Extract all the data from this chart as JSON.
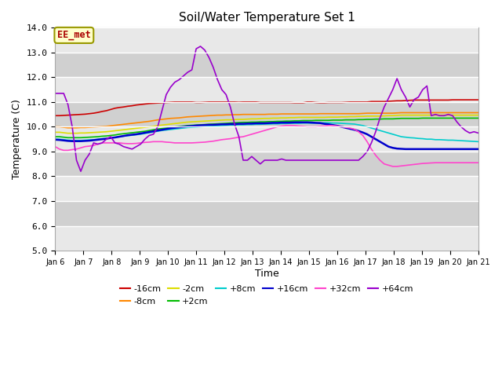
{
  "title": "Soil/Water Temperature Set 1",
  "xlabel": "Time",
  "ylabel": "Temperature (C)",
  "ylim": [
    5.0,
    14.0
  ],
  "yticks": [
    5.0,
    6.0,
    7.0,
    8.0,
    9.0,
    10.0,
    11.0,
    12.0,
    13.0,
    14.0
  ],
  "xtick_labels": [
    "Jan 6",
    "Jan 7",
    "Jan 8",
    "Jan 9",
    "Jan 10",
    "Jan 11",
    "Jan 12",
    "Jan 13",
    "Jan 14",
    "Jan 15",
    "Jan 16",
    "Jan 17",
    "Jan 18",
    "Jan 19",
    "Jan 20",
    "Jan 21"
  ],
  "series": [
    {
      "label": "-16cm",
      "color": "#cc0000",
      "linewidth": 1.2,
      "y": [
        10.45,
        10.45,
        10.46,
        10.47,
        10.48,
        10.49,
        10.5,
        10.51,
        10.53,
        10.55,
        10.58,
        10.62,
        10.65,
        10.7,
        10.75,
        10.78,
        10.8,
        10.83,
        10.85,
        10.88,
        10.9,
        10.92,
        10.94,
        10.95,
        10.96,
        10.97,
        10.98,
        10.99,
        11.0,
        11.0,
        11.0,
        11.0,
        11.0,
        10.98,
        10.98,
        10.99,
        11.0,
        11.0,
        11.0,
        11.0,
        11.0,
        11.0,
        11.0,
        10.99,
        11.0,
        11.0,
        11.0,
        11.0,
        10.98,
        10.98,
        10.98,
        10.98,
        10.98,
        10.98,
        10.98,
        10.98,
        10.97,
        10.97,
        10.97,
        11.0,
        11.0,
        10.98,
        10.97,
        10.97,
        10.98,
        10.98,
        10.98,
        10.98,
        10.99,
        11.0,
        11.0,
        11.0,
        11.0,
        11.0,
        11.02,
        11.02,
        11.02,
        11.02,
        11.03,
        11.04,
        11.05,
        11.05,
        11.06,
        11.07,
        11.08,
        11.08,
        11.08,
        11.08,
        11.08,
        11.08,
        11.08,
        11.08,
        11.08,
        11.09,
        11.09,
        11.09,
        11.09,
        11.09,
        11.09,
        11.09
      ]
    },
    {
      "label": "-8cm",
      "color": "#ff8800",
      "linewidth": 1.2,
      "y": [
        10.0,
        10.0,
        9.98,
        9.96,
        9.96,
        9.96,
        9.97,
        9.97,
        9.98,
        9.99,
        10.0,
        10.01,
        10.02,
        10.04,
        10.06,
        10.08,
        10.1,
        10.12,
        10.14,
        10.16,
        10.18,
        10.2,
        10.22,
        10.25,
        10.28,
        10.3,
        10.32,
        10.34,
        10.35,
        10.36,
        10.38,
        10.4,
        10.41,
        10.42,
        10.43,
        10.44,
        10.45,
        10.46,
        10.47,
        10.47,
        10.48,
        10.48,
        10.49,
        10.49,
        10.5,
        10.5,
        10.5,
        10.5,
        10.5,
        10.5,
        10.51,
        10.51,
        10.51,
        10.52,
        10.52,
        10.52,
        10.52,
        10.52,
        10.52,
        10.52,
        10.52,
        10.52,
        10.53,
        10.53,
        10.53,
        10.53,
        10.53,
        10.53,
        10.53,
        10.53,
        10.53,
        10.53,
        10.54,
        10.55,
        10.55,
        10.55,
        10.55,
        10.55,
        10.55,
        10.55,
        10.56,
        10.57,
        10.57,
        10.57,
        10.57,
        10.57,
        10.57,
        10.57,
        10.57,
        10.57,
        10.57,
        10.57,
        10.57,
        10.57,
        10.57,
        10.57,
        10.57,
        10.57,
        10.57,
        10.57
      ]
    },
    {
      "label": "-2cm",
      "color": "#dddd00",
      "linewidth": 1.2,
      "y": [
        9.78,
        9.78,
        9.76,
        9.74,
        9.74,
        9.74,
        9.75,
        9.75,
        9.76,
        9.77,
        9.78,
        9.79,
        9.8,
        9.82,
        9.84,
        9.86,
        9.88,
        9.9,
        9.92,
        9.94,
        9.96,
        9.98,
        10.0,
        10.02,
        10.05,
        10.07,
        10.09,
        10.11,
        10.13,
        10.15,
        10.17,
        10.19,
        10.2,
        10.21,
        10.22,
        10.23,
        10.24,
        10.25,
        10.26,
        10.27,
        10.28,
        10.28,
        10.29,
        10.3,
        10.3,
        10.31,
        10.32,
        10.32,
        10.33,
        10.34,
        10.34,
        10.35,
        10.35,
        10.36,
        10.36,
        10.37,
        10.37,
        10.38,
        10.38,
        10.38,
        10.38,
        10.38,
        10.38,
        10.38,
        10.39,
        10.39,
        10.39,
        10.4,
        10.4,
        10.41,
        10.41,
        10.42,
        10.42,
        10.43,
        10.43,
        10.43,
        10.43,
        10.44,
        10.45,
        10.45,
        10.46,
        10.47,
        10.47,
        10.47,
        10.47,
        10.47,
        10.47,
        10.47,
        10.47,
        10.47,
        10.47,
        10.47,
        10.47,
        10.47,
        10.47,
        10.47,
        10.47,
        10.47,
        10.47,
        10.47
      ]
    },
    {
      "label": "+2cm",
      "color": "#00bb00",
      "linewidth": 1.2,
      "y": [
        9.6,
        9.6,
        9.58,
        9.56,
        9.56,
        9.56,
        9.56,
        9.57,
        9.58,
        9.59,
        9.6,
        9.62,
        9.63,
        9.65,
        9.67,
        9.7,
        9.72,
        9.74,
        9.76,
        9.78,
        9.8,
        9.82,
        9.85,
        9.88,
        9.91,
        9.93,
        9.95,
        9.97,
        9.99,
        10.01,
        10.03,
        10.05,
        10.06,
        10.07,
        10.08,
        10.09,
        10.1,
        10.11,
        10.12,
        10.13,
        10.14,
        10.15,
        10.16,
        10.17,
        10.18,
        10.18,
        10.19,
        10.19,
        10.2,
        10.2,
        10.21,
        10.21,
        10.22,
        10.22,
        10.23,
        10.23,
        10.24,
        10.24,
        10.25,
        10.25,
        10.25,
        10.26,
        10.26,
        10.26,
        10.26,
        10.27,
        10.27,
        10.27,
        10.28,
        10.28,
        10.28,
        10.29,
        10.29,
        10.3,
        10.3,
        10.31,
        10.31,
        10.32,
        10.32,
        10.32,
        10.33,
        10.34,
        10.34,
        10.34,
        10.34,
        10.34,
        10.35,
        10.35,
        10.35,
        10.35,
        10.35,
        10.35,
        10.35,
        10.35,
        10.35,
        10.35,
        10.35,
        10.35,
        10.35,
        10.35
      ]
    },
    {
      "label": "+8cm",
      "color": "#00cccc",
      "linewidth": 1.2,
      "y": [
        9.5,
        9.5,
        9.48,
        9.46,
        9.45,
        9.45,
        9.45,
        9.46,
        9.47,
        9.48,
        9.5,
        9.52,
        9.53,
        9.55,
        9.57,
        9.6,
        9.62,
        9.64,
        9.66,
        9.68,
        9.7,
        9.73,
        9.76,
        9.79,
        9.82,
        9.85,
        9.87,
        9.89,
        9.91,
        9.93,
        9.95,
        9.97,
        9.98,
        9.99,
        10.0,
        10.01,
        10.02,
        10.03,
        10.04,
        10.05,
        10.06,
        10.07,
        10.07,
        10.08,
        10.08,
        10.09,
        10.09,
        10.1,
        10.1,
        10.11,
        10.11,
        10.12,
        10.12,
        10.13,
        10.13,
        10.14,
        10.14,
        10.14,
        10.15,
        10.15,
        10.15,
        10.15,
        10.16,
        10.16,
        10.16,
        10.15,
        10.15,
        10.14,
        10.13,
        10.12,
        10.11,
        10.08,
        10.05,
        10.0,
        9.95,
        9.9,
        9.85,
        9.8,
        9.75,
        9.7,
        9.65,
        9.6,
        9.58,
        9.56,
        9.55,
        9.53,
        9.52,
        9.5,
        9.5,
        9.48,
        9.48,
        9.47,
        9.46,
        9.46,
        9.45,
        9.44,
        9.43,
        9.42,
        9.41,
        9.4
      ]
    },
    {
      "label": "+16cm",
      "color": "#0000cc",
      "linewidth": 1.8,
      "y": [
        9.48,
        9.47,
        9.45,
        9.43,
        9.42,
        9.42,
        9.42,
        9.43,
        9.44,
        9.46,
        9.48,
        9.5,
        9.52,
        9.55,
        9.57,
        9.6,
        9.63,
        9.66,
        9.68,
        9.7,
        9.73,
        9.76,
        9.79,
        9.82,
        9.85,
        9.88,
        9.91,
        9.94,
        9.96,
        9.98,
        10.0,
        10.02,
        10.03,
        10.05,
        10.06,
        10.07,
        10.08,
        10.08,
        10.09,
        10.1,
        10.1,
        10.11,
        10.11,
        10.12,
        10.12,
        10.13,
        10.13,
        10.14,
        10.14,
        10.14,
        10.15,
        10.16,
        10.16,
        10.17,
        10.17,
        10.17,
        10.18,
        10.18,
        10.18,
        10.18,
        10.17,
        10.16,
        10.15,
        10.12,
        10.1,
        10.07,
        10.04,
        10.0,
        9.96,
        9.92,
        9.88,
        9.83,
        9.77,
        9.7,
        9.6,
        9.5,
        9.4,
        9.3,
        9.2,
        9.15,
        9.12,
        9.11,
        9.1,
        9.1,
        9.1,
        9.1,
        9.1,
        9.1,
        9.1,
        9.1,
        9.1,
        9.1,
        9.1,
        9.1,
        9.1,
        9.1,
        9.1,
        9.1,
        9.1,
        9.1
      ]
    },
    {
      "label": "+32cm",
      "color": "#ff44cc",
      "linewidth": 1.2,
      "y": [
        9.2,
        9.1,
        9.05,
        9.05,
        9.08,
        9.1,
        9.15,
        9.2,
        9.22,
        9.25,
        9.3,
        9.35,
        9.35,
        9.35,
        9.35,
        9.35,
        9.33,
        9.32,
        9.32,
        9.33,
        9.35,
        9.37,
        9.38,
        9.4,
        9.4,
        9.4,
        9.38,
        9.37,
        9.35,
        9.35,
        9.35,
        9.35,
        9.35,
        9.36,
        9.37,
        9.38,
        9.4,
        9.42,
        9.45,
        9.48,
        9.5,
        9.52,
        9.55,
        9.58,
        9.6,
        9.65,
        9.7,
        9.75,
        9.8,
        9.85,
        9.9,
        9.95,
        10.0,
        10.03,
        10.05,
        10.05,
        10.05,
        10.03,
        10.02,
        10.0,
        10.0,
        10.0,
        10.02,
        10.03,
        10.05,
        10.05,
        10.03,
        10.0,
        9.98,
        9.95,
        9.9,
        9.8,
        9.65,
        9.4,
        9.1,
        8.85,
        8.65,
        8.5,
        8.45,
        8.4,
        8.4,
        8.42,
        8.44,
        8.46,
        8.48,
        8.5,
        8.52,
        8.53,
        8.54,
        8.55,
        8.55,
        8.55,
        8.55,
        8.55,
        8.55,
        8.55,
        8.55,
        8.55,
        8.55,
        8.55
      ]
    },
    {
      "label": "+64cm",
      "color": "#9900cc",
      "linewidth": 1.2,
      "y": [
        11.35,
        11.35,
        11.35,
        10.9,
        10.0,
        8.65,
        8.2,
        8.65,
        8.9,
        9.35,
        9.3,
        9.35,
        9.5,
        9.6,
        9.35,
        9.3,
        9.2,
        9.15,
        9.1,
        9.2,
        9.3,
        9.5,
        9.65,
        9.7,
        10.0,
        10.65,
        11.3,
        11.6,
        11.8,
        11.9,
        12.05,
        12.2,
        12.3,
        13.15,
        13.25,
        13.1,
        12.8,
        12.4,
        11.9,
        11.5,
        11.3,
        10.8,
        10.1,
        9.6,
        8.65,
        8.65,
        8.8,
        8.65,
        8.5,
        8.65,
        8.65,
        8.65,
        8.65,
        8.7,
        8.65,
        8.65,
        8.65,
        8.65,
        8.65,
        8.65,
        8.65,
        8.65,
        8.65,
        8.65,
        8.65,
        8.65,
        8.65,
        8.65,
        8.65,
        8.65,
        8.65,
        8.65,
        8.8,
        9.0,
        9.35,
        9.8,
        10.35,
        10.8,
        11.15,
        11.5,
        11.95,
        11.5,
        11.2,
        10.8,
        11.1,
        11.2,
        11.5,
        11.65,
        10.45,
        10.5,
        10.45,
        10.45,
        10.5,
        10.45,
        10.2,
        10.0,
        9.85,
        9.75,
        9.8,
        9.75
      ]
    }
  ]
}
